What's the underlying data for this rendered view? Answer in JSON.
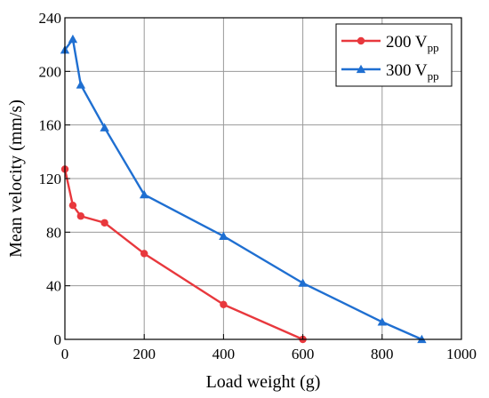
{
  "chart_data": {
    "type": "line",
    "xlabel": "Load weight (g)",
    "ylabel": "Mean velocity (mm/s)",
    "xlim": [
      0,
      1000
    ],
    "ylim": [
      0,
      240
    ],
    "xticks": [
      "0",
      "200",
      "400",
      "600",
      "800",
      "1000"
    ],
    "yticks": [
      "0",
      "40",
      "80",
      "120",
      "160",
      "200",
      "240"
    ],
    "grid": true,
    "legend_position": "top-right",
    "series": [
      {
        "name": "200 V",
        "name_subscript": "pp",
        "color": "#e8383d",
        "marker": "circle",
        "x": [
          0,
          20,
          40,
          100,
          200,
          400,
          600
        ],
        "y": [
          127,
          100,
          92,
          87,
          64,
          26,
          0
        ]
      },
      {
        "name": "300 V",
        "name_subscript": "pp",
        "color": "#1f6fd1",
        "marker": "triangle",
        "x": [
          0,
          20,
          40,
          100,
          200,
          400,
          600,
          800,
          900
        ],
        "y": [
          216,
          224,
          190,
          158,
          108,
          77,
          42,
          13,
          0
        ]
      }
    ]
  }
}
